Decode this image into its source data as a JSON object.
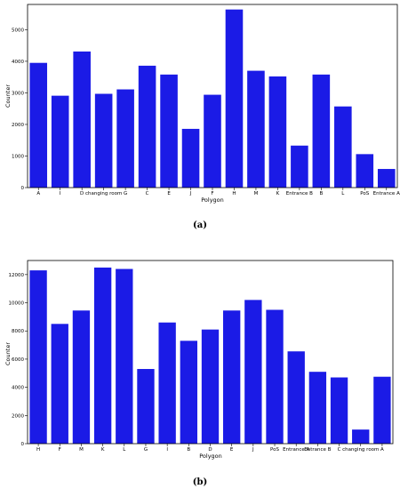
{
  "bar_color": "#1b1be6",
  "chart_data": [
    {
      "type": "bar",
      "caption": "(a)",
      "xlabel": "Polygon",
      "ylabel": "Counter",
      "ylim": [
        0,
        5800
      ],
      "yticks": [
        0,
        1000,
        2000,
        3000,
        4000,
        5000
      ],
      "grid": false,
      "categories": [
        "A",
        "I",
        "D",
        "changing room",
        "G",
        "C",
        "E",
        "J",
        "F",
        "H",
        "M",
        "K",
        "Entrance B",
        "B",
        "L",
        "PoS",
        "Entrance A"
      ],
      "values": [
        3950,
        2910,
        4310,
        2970,
        3110,
        3860,
        3580,
        1860,
        2940,
        5640,
        3700,
        3520,
        1330,
        3580,
        2570,
        1060,
        590
      ]
    },
    {
      "type": "bar",
      "caption": "(b)",
      "xlabel": "Polygon",
      "ylabel": "Counter",
      "ylim": [
        0,
        13000
      ],
      "yticks": [
        0,
        2000,
        4000,
        6000,
        8000,
        10000,
        12000
      ],
      "grid": false,
      "categories": [
        "H",
        "F",
        "M",
        "K",
        "L",
        "G",
        "I",
        "B",
        "D",
        "E",
        "J",
        "PoS",
        "Entrance A",
        "Entrance B",
        "C",
        "changing room",
        "A"
      ],
      "values": [
        12300,
        8500,
        9450,
        12500,
        12400,
        5300,
        8600,
        7300,
        8100,
        9450,
        10200,
        9500,
        6550,
        5100,
        4700,
        1000,
        4750
      ]
    }
  ]
}
